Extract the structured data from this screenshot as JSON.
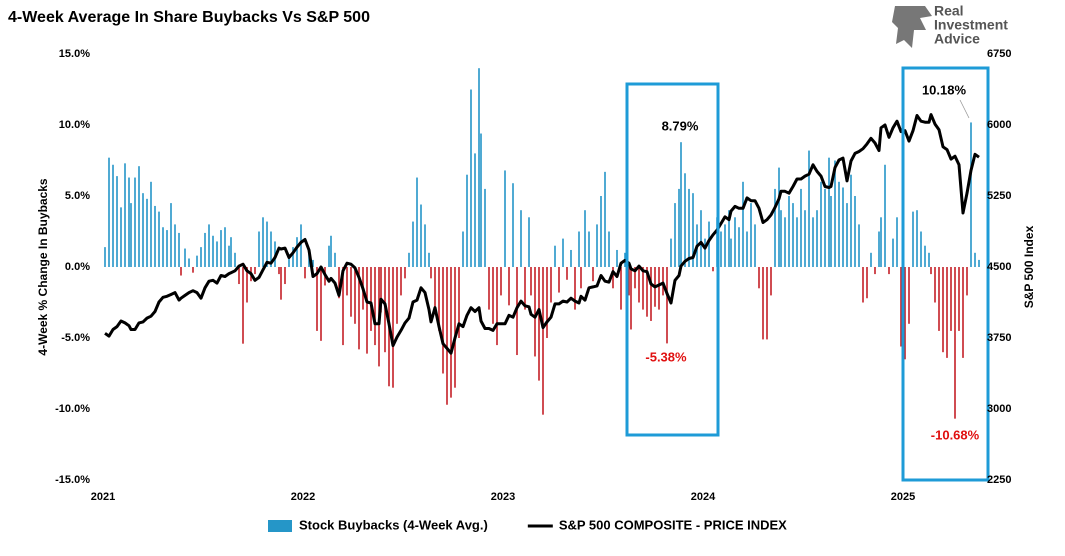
{
  "logo": [
    "Real",
    "Investment",
    "Advice"
  ],
  "chart_data": {
    "type": "bar",
    "title": "4-Week Average In Share Buybacks Vs S&P 500",
    "ylabel": "4-Week % Change In Buybacks",
    "y2label": "S&P 500 Index",
    "xlim": [
      2020.99,
      2025.43
    ],
    "xticks": [
      2021,
      2022,
      2023,
      2024,
      2025
    ],
    "ylim": [
      -15,
      15
    ],
    "yticks": [
      {
        "value": -15,
        "label": "-15.0%"
      },
      {
        "value": -10,
        "label": "-10.0%"
      },
      {
        "value": -5,
        "label": "-5.0%"
      },
      {
        "value": 0,
        "label": "0.0%"
      },
      {
        "value": 5,
        "label": "5.0%"
      },
      {
        "value": 10,
        "label": "10.0%"
      },
      {
        "value": 15,
        "label": "15.0%"
      }
    ],
    "y2lim": [
      2250,
      6750
    ],
    "y2ticks": [
      2250,
      3000,
      3750,
      4500,
      5250,
      6000,
      6750
    ],
    "grid": false,
    "annotations": [
      {
        "text": "8.79%",
        "color": "#000000"
      },
      {
        "text": "-5.38%",
        "color": "#e01010"
      },
      {
        "text": "10.18%",
        "color": "#000000"
      },
      {
        "text": "-10.68%",
        "color": "#e01010"
      }
    ],
    "x": [
      2021.01,
      2021.03,
      2021.05,
      2021.07,
      2021.09,
      2021.11,
      2021.13,
      2021.14,
      2021.16,
      2021.18,
      2021.2,
      2021.22,
      2021.24,
      2021.26,
      2021.28,
      2021.3,
      2021.32,
      2021.34,
      2021.36,
      2021.38,
      2021.39,
      2021.41,
      2021.43,
      2021.45,
      2021.47,
      2021.49,
      2021.51,
      2021.53,
      2021.55,
      2021.57,
      2021.59,
      2021.61,
      2021.63,
      2021.64,
      2021.66,
      2021.68,
      2021.7,
      2021.72,
      2021.74,
      2021.76,
      2021.78,
      2021.8,
      2021.82,
      2021.84,
      2021.86,
      2021.88,
      2021.89,
      2021.91,
      2021.93,
      2021.95,
      2021.97,
      2021.99,
      2022.01,
      2022.03,
      2022.05,
      2022.07,
      2022.09,
      2022.11,
      2022.13,
      2022.14,
      2022.16,
      2022.18,
      2022.2,
      2022.22,
      2022.24,
      2022.26,
      2022.28,
      2022.3,
      2022.32,
      2022.34,
      2022.36,
      2022.38,
      2022.39,
      2022.41,
      2022.43,
      2022.45,
      2022.47,
      2022.49,
      2022.51,
      2022.53,
      2022.55,
      2022.57,
      2022.59,
      2022.61,
      2022.63,
      2022.64,
      2022.66,
      2022.68,
      2022.7,
      2022.72,
      2022.74,
      2022.76,
      2022.78,
      2022.8,
      2022.82,
      2022.84,
      2022.86,
      2022.88,
      2022.89,
      2022.91,
      2022.93,
      2022.95,
      2022.97,
      2022.99,
      2023.01,
      2023.03,
      2023.05,
      2023.07,
      2023.09,
      2023.11,
      2023.13,
      2023.14,
      2023.16,
      2023.18,
      2023.2,
      2023.22,
      2023.24,
      2023.26,
      2023.28,
      2023.3,
      2023.32,
      2023.34,
      2023.36,
      2023.38,
      2023.39,
      2023.41,
      2023.43,
      2023.45,
      2023.47,
      2023.49,
      2023.51,
      2023.53,
      2023.55,
      2023.57,
      2023.59,
      2023.61,
      2023.63,
      2023.64,
      2023.66,
      2023.68,
      2023.7,
      2023.72,
      2023.74,
      2023.76,
      2023.78,
      2023.8,
      2023.82,
      2023.84,
      2023.86,
      2023.88,
      2023.89,
      2023.91,
      2023.93,
      2023.95,
      2023.97,
      2023.99,
      2024.01,
      2024.03,
      2024.05,
      2024.07,
      2024.09,
      2024.11,
      2024.13,
      2024.14,
      2024.16,
      2024.18,
      2024.2,
      2024.22,
      2024.24,
      2024.26,
      2024.28,
      2024.3,
      2024.32,
      2024.34,
      2024.36,
      2024.38,
      2024.39,
      2024.41,
      2024.43,
      2024.45,
      2024.47,
      2024.49,
      2024.51,
      2024.53,
      2024.55,
      2024.57,
      2024.59,
      2024.61,
      2024.63,
      2024.64,
      2024.66,
      2024.68,
      2024.7,
      2024.72,
      2024.74,
      2024.76,
      2024.78,
      2024.8,
      2024.82,
      2024.84,
      2024.86,
      2024.88,
      2024.89,
      2024.91,
      2024.93,
      2024.95,
      2024.97,
      2024.99,
      2025.01,
      2025.03,
      2025.05,
      2025.07,
      2025.09,
      2025.11,
      2025.13,
      2025.14,
      2025.16,
      2025.18,
      2025.2,
      2025.22,
      2025.24,
      2025.26,
      2025.28,
      2025.3,
      2025.32,
      2025.34,
      2025.36,
      2025.38
    ],
    "series": [
      {
        "name": "Stock Buybacks (4-Week Avg.)",
        "type": "bar",
        "color": "#2596c8",
        "negative_color": "#c42127",
        "values": [
          1.4,
          7.7,
          7.2,
          6.4,
          4.2,
          7.3,
          6.3,
          4.5,
          6.3,
          7.1,
          5.2,
          4.8,
          6.0,
          4.3,
          3.9,
          2.8,
          2.6,
          4.5,
          3.0,
          2.4,
          -0.6,
          1.3,
          0.6,
          -0.4,
          0.8,
          1.4,
          2.4,
          3.0,
          2.2,
          1.8,
          2.6,
          2.8,
          1.5,
          2.1,
          1.0,
          -1.2,
          -5.4,
          -2.5,
          -1.0,
          -0.5,
          2.5,
          3.5,
          3.2,
          2.5,
          1.8,
          -0.5,
          -2.3,
          -1.2,
          0.9,
          1.4,
          2.1,
          3.0,
          -0.8,
          1.2,
          0.5,
          -4.5,
          -5.2,
          -1.3,
          1.5,
          2.2,
          1.0,
          -2.2,
          -5.5,
          -2.0,
          -3.5,
          -4.0,
          -5.8,
          -3.0,
          -6.1,
          -4.5,
          -5.5,
          -7.0,
          -3.2,
          -6.0,
          -8.4,
          -8.5,
          -4.0,
          -2.0,
          -0.8,
          1.0,
          3.2,
          6.3,
          4.4,
          3.0,
          1.0,
          -0.8,
          -3.0,
          -4.5,
          -7.5,
          -9.7,
          -9.2,
          -8.5,
          -5.0,
          2.5,
          6.5,
          12.5,
          8.0,
          14.0,
          9.4,
          5.5,
          -3.0,
          -4.0,
          -5.5,
          -2.0,
          6.8,
          -2.7,
          5.9,
          -6.2,
          4.0,
          -3.0,
          3.5,
          -2.0,
          -6.3,
          -8.0,
          -10.4,
          -5.0,
          -2.5,
          1.5,
          -1.8,
          2.0,
          -0.9,
          1.2,
          -3.0,
          2.5,
          -1.5,
          4.0,
          2.5,
          -1.0,
          3.0,
          5.0,
          6.7,
          2.5,
          -1.5,
          1.2,
          -3.0,
          1.0,
          -2.0,
          -4.4,
          -1.5,
          -2.5,
          -3.0,
          -3.5,
          -3.8,
          -2.8,
          -3.0,
          -2.0,
          -5.38,
          2.0,
          4.5,
          5.5,
          8.79,
          6.6,
          5.5,
          5.2,
          3.0,
          4.0,
          2.0,
          3.2,
          -0.3,
          3.5,
          2.5,
          3.0,
          4.0,
          2.0,
          3.5,
          2.8,
          6.0,
          2.5,
          4.5,
          3.0,
          -1.5,
          -5.1,
          -5.1,
          -2.0,
          5.5,
          7.0,
          4.0,
          3.5,
          5.0,
          4.5,
          3.5,
          5.5,
          4.0,
          8.2,
          3.5,
          4.0,
          6.0,
          5.5,
          7.7,
          5.0,
          7.5,
          6.0,
          5.6,
          4.5,
          6.5,
          5.0,
          3.0,
          -2.5,
          -2.2,
          1.0,
          -0.5,
          2.5,
          3.5,
          7.2,
          -0.5,
          2.0,
          3.5,
          -5.6,
          -6.5,
          -4.0,
          3.9,
          4.0,
          2.5,
          1.5,
          1.0,
          -0.5,
          -2.5,
          -4.5,
          -6.0,
          -6.4,
          -4.5,
          -10.68,
          -4.5,
          -6.4,
          -2.0,
          10.18,
          1.0,
          0.5
        ]
      },
      {
        "name": "S&P 500 COMPOSITE - PRICE INDEX",
        "type": "line",
        "axis": "y2",
        "color": "#000000",
        "values": [
          3800,
          3770,
          3840,
          3870,
          3930,
          3910,
          3880,
          3840,
          3840,
          3910,
          3920,
          3960,
          3980,
          4030,
          4130,
          4180,
          4190,
          4210,
          4230,
          4150,
          4170,
          4200,
          4230,
          4250,
          4230,
          4170,
          4280,
          4350,
          4360,
          4330,
          4410,
          4400,
          4430,
          4440,
          4460,
          4510,
          4530,
          4460,
          4430,
          4360,
          4390,
          4470,
          4550,
          4540,
          4600,
          4700,
          4690,
          4700,
          4600,
          4650,
          4710,
          4760,
          4790,
          4680,
          4400,
          4430,
          4500,
          4420,
          4350,
          4380,
          4330,
          4200,
          4460,
          4540,
          4530,
          4490,
          4390,
          4270,
          4130,
          4120,
          3900,
          3900,
          4160,
          4110,
          3900,
          3670,
          3760,
          3830,
          3910,
          3960,
          4130,
          4150,
          4280,
          4230,
          4050,
          3920,
          4070,
          3870,
          3690,
          3640,
          3590,
          3750,
          3900,
          3870,
          3990,
          4070,
          4030,
          4070,
          3930,
          3850,
          3850,
          3830,
          3900,
          3900,
          3900,
          3990,
          3970,
          4070,
          4140,
          4090,
          4080,
          4000,
          3970,
          4050,
          3860,
          3920,
          3970,
          4110,
          4110,
          4140,
          4130,
          4170,
          4140,
          4120,
          4190,
          4150,
          4280,
          4290,
          4300,
          4410,
          4350,
          4340,
          4450,
          4400,
          4540,
          4570,
          4540,
          4480,
          4460,
          4510,
          4460,
          4450,
          4320,
          4290,
          4310,
          4330,
          4220,
          4120,
          4360,
          4410,
          4510,
          4560,
          4590,
          4600,
          4720,
          4760,
          4700,
          4780,
          4840,
          4890,
          4960,
          5030,
          5000,
          5090,
          5140,
          5120,
          5120,
          5230,
          5200,
          5200,
          5120,
          4970,
          5000,
          5050,
          5130,
          5220,
          5300,
          5300,
          5280,
          5350,
          5430,
          5430,
          5460,
          5480,
          5580,
          5510,
          5460,
          5350,
          5340,
          5350,
          5550,
          5630,
          5650,
          5410,
          5620,
          5700,
          5720,
          5750,
          5800,
          5860,
          5810,
          5730,
          5970,
          6000,
          5870,
          5970,
          6040,
          5930,
          5940,
          5830,
          5940,
          6100,
          6040,
          6030,
          6030,
          6110,
          6010,
          5950,
          5770,
          5740,
          5640,
          5670,
          5580,
          5070,
          5280,
          5520,
          5690,
          5660
        ]
      }
    ]
  }
}
